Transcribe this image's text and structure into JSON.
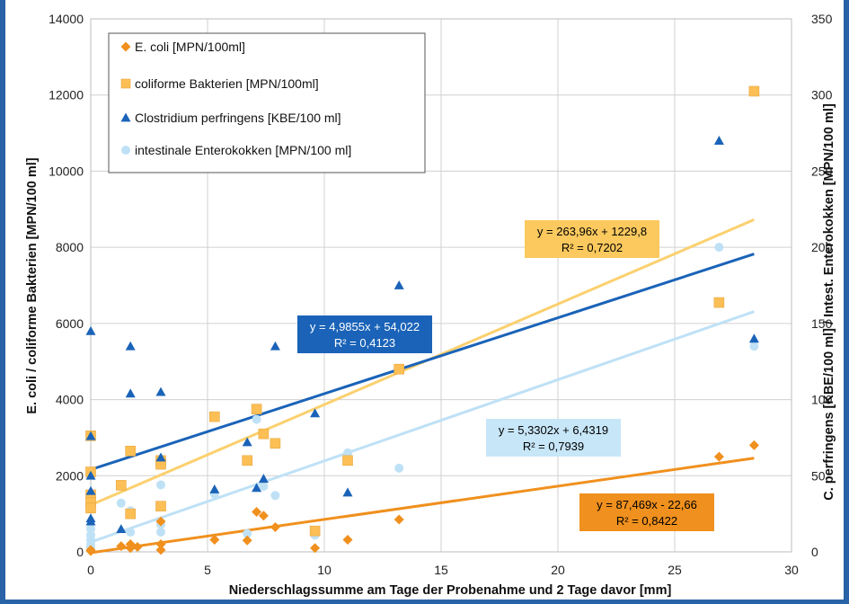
{
  "chart_data": {
    "type": "scatter",
    "xlabel": "Niederschlagssumme am Tage der Probenahme und 2 Tage davor [mm]",
    "ylabel_left": "E. coli / coliforme Bakterien [MPN/100 ml]",
    "ylabel_right": "C. perfringens [KBE/100 ml] / Intest. Enterokokken [MPN/100 ml]",
    "xlim": [
      0,
      30
    ],
    "ylim_left": [
      0,
      14000
    ],
    "ylim_right": [
      0,
      350
    ],
    "x_ticks": [
      "0",
      "5",
      "10",
      "15",
      "20",
      "25",
      "30"
    ],
    "y_ticks_left": [
      "0",
      "2000",
      "4000",
      "6000",
      "8000",
      "10000",
      "12000",
      "14000"
    ],
    "y_ticks_right": [
      "0",
      "50",
      "100",
      "150",
      "200",
      "250",
      "300",
      "350"
    ],
    "grid": true,
    "legend_position": "top-left",
    "series": [
      {
        "name": "E. coli [MPN/100ml]",
        "axis": "left",
        "marker": "diamond",
        "color": "#f0901e",
        "points": [
          [
            0,
            50
          ],
          [
            0,
            20
          ],
          [
            1.3,
            150
          ],
          [
            1.7,
            200
          ],
          [
            1.7,
            100
          ],
          [
            2,
            130
          ],
          [
            3,
            800
          ],
          [
            3,
            200
          ],
          [
            3,
            50
          ],
          [
            5.3,
            320
          ],
          [
            6.7,
            300
          ],
          [
            7.1,
            1050
          ],
          [
            7.4,
            950
          ],
          [
            7.9,
            650
          ],
          [
            9.6,
            100
          ],
          [
            11,
            320
          ],
          [
            13.2,
            850
          ],
          [
            26.9,
            2500
          ],
          [
            28.4,
            2800
          ]
        ]
      },
      {
        "name": "coliforme Bakterien [MPN/100ml]",
        "axis": "left",
        "marker": "square",
        "color": "#fbbf56",
        "points": [
          [
            0,
            3050
          ],
          [
            0,
            2100
          ],
          [
            0,
            1500
          ],
          [
            0,
            1300
          ],
          [
            0,
            1150
          ],
          [
            1.3,
            1750
          ],
          [
            1.7,
            2650
          ],
          [
            1.7,
            1000
          ],
          [
            3,
            2400
          ],
          [
            3,
            2300
          ],
          [
            3,
            1200
          ],
          [
            5.3,
            3550
          ],
          [
            6.7,
            2400
          ],
          [
            7.1,
            3750
          ],
          [
            7.4,
            3100
          ],
          [
            7.9,
            2850
          ],
          [
            9.6,
            550
          ],
          [
            11,
            2400
          ],
          [
            13.2,
            4800
          ],
          [
            26.9,
            6550
          ],
          [
            28.4,
            12100
          ]
        ]
      },
      {
        "name": "Clostridium perfringens [KBE/100 ml]",
        "axis": "right",
        "marker": "triangle",
        "color": "#1a63b8",
        "points": [
          [
            0,
            145
          ],
          [
            0,
            76
          ],
          [
            0,
            50
          ],
          [
            0,
            40
          ],
          [
            0,
            22
          ],
          [
            0,
            20
          ],
          [
            1.3,
            15
          ],
          [
            1.7,
            135
          ],
          [
            1.7,
            104
          ],
          [
            3,
            105
          ],
          [
            3,
            62
          ],
          [
            5.3,
            41
          ],
          [
            6.7,
            72
          ],
          [
            7.1,
            42
          ],
          [
            7.4,
            48
          ],
          [
            7.9,
            135
          ],
          [
            9.6,
            91
          ],
          [
            11,
            39
          ],
          [
            13.2,
            175
          ],
          [
            26.9,
            270
          ],
          [
            28.4,
            140
          ]
        ]
      },
      {
        "name": "intestinale Enterokokken [MPN/100 ml]",
        "axis": "right",
        "marker": "circle",
        "color": "#bfe1f6",
        "points": [
          [
            0,
            15
          ],
          [
            0,
            11
          ],
          [
            0,
            8
          ],
          [
            0,
            5
          ],
          [
            0,
            3
          ],
          [
            1.3,
            32
          ],
          [
            1.7,
            27
          ],
          [
            1.7,
            13
          ],
          [
            3,
            44
          ],
          [
            3,
            18
          ],
          [
            3,
            13
          ],
          [
            5.3,
            38
          ],
          [
            6.7,
            12
          ],
          [
            7.1,
            87
          ],
          [
            7.4,
            43
          ],
          [
            7.9,
            37
          ],
          [
            9.6,
            11
          ],
          [
            11,
            65
          ],
          [
            13.2,
            55
          ],
          [
            26.9,
            200
          ],
          [
            28.4,
            135
          ]
        ]
      }
    ],
    "trendlines": [
      {
        "series": "E. coli [MPN/100ml]",
        "axis": "left",
        "color": "#f0901e",
        "slope": 87.469,
        "intercept": -22.66,
        "equation": "y = 87,469x - 22,66",
        "r2": "R² = 0,8422",
        "label_bg": "#f0901e",
        "label_color": "#000000"
      },
      {
        "series": "coliforme Bakterien [MPN/100ml]",
        "axis": "left",
        "color": "#fbd06e",
        "slope": 263.96,
        "intercept": 1229.8,
        "equation": "y = 263,96x + 1229,8",
        "r2": "R² = 0,7202",
        "label_bg": "#fbc95e",
        "label_color": "#000000"
      },
      {
        "series": "Clostridium perfringens [KBE/100 ml]",
        "axis": "right",
        "color": "#1a63b8",
        "slope": 4.9855,
        "intercept": 54.022,
        "equation": "y = 4,9855x + 54,022",
        "r2": "R² = 0,4123",
        "label_bg": "#1a63b8",
        "label_color": "#ffffff"
      },
      {
        "series": "intestinale Enterokokken [MPN/100 ml]",
        "axis": "right",
        "color": "#bfe1f6",
        "slope": 5.3302,
        "intercept": 6.4319,
        "equation": "y = 5,3302x + 6,4319",
        "r2": "R² = 0,7939",
        "label_bg": "#c7e6f8",
        "label_color": "#000000"
      }
    ]
  }
}
